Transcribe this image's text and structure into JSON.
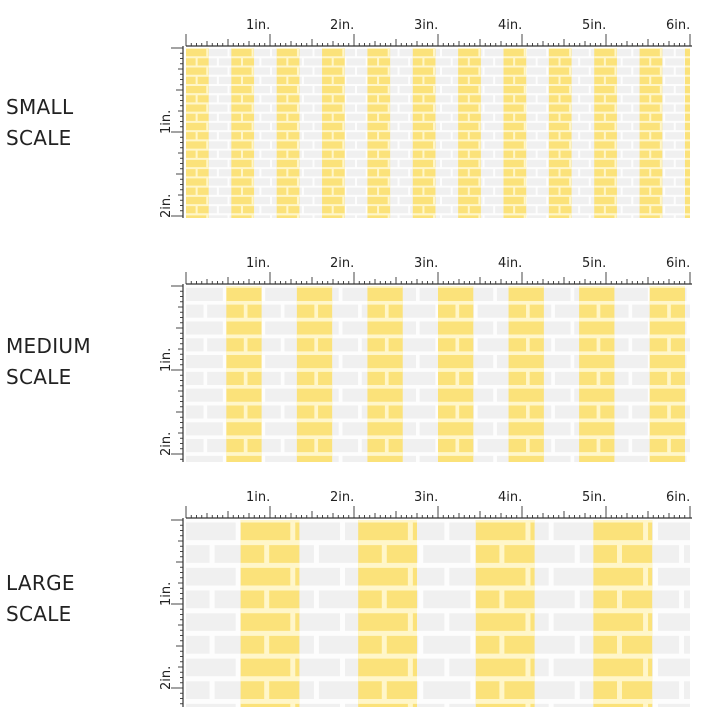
{
  "unit_labels": [
    "1in.",
    "2in.",
    "3in.",
    "4in.",
    "5in.",
    "6in."
  ],
  "vertical_labels": [
    "1in.",
    "2in."
  ],
  "colors": {
    "yellow": "#fbe27a",
    "yellow_brick_line": "#fff6c9",
    "white_stripe": "#f0f0f0",
    "white_brick_line": "#fdfdfd",
    "ruler": "#333333"
  },
  "panels": [
    {
      "id": "small",
      "label_line1": "SMALL",
      "label_line2": "SCALE",
      "stripe_width_in": 0.27,
      "first_stripe_in": 0.0,
      "stripe_count": 12,
      "brick_row_in": 0.11
    },
    {
      "id": "medium",
      "label_line1": "MEDIUM",
      "label_line2": "SCALE",
      "stripe_width_in": 0.42,
      "first_stripe_in": 0.48,
      "stripe_count": 7,
      "brick_row_in": 0.2
    },
    {
      "id": "large",
      "label_line1": "LARGE",
      "label_line2": "SCALE",
      "stripe_width_in": 0.7,
      "first_stripe_in": 0.65,
      "stripe_count": 4,
      "brick_row_in": 0.27
    }
  ]
}
